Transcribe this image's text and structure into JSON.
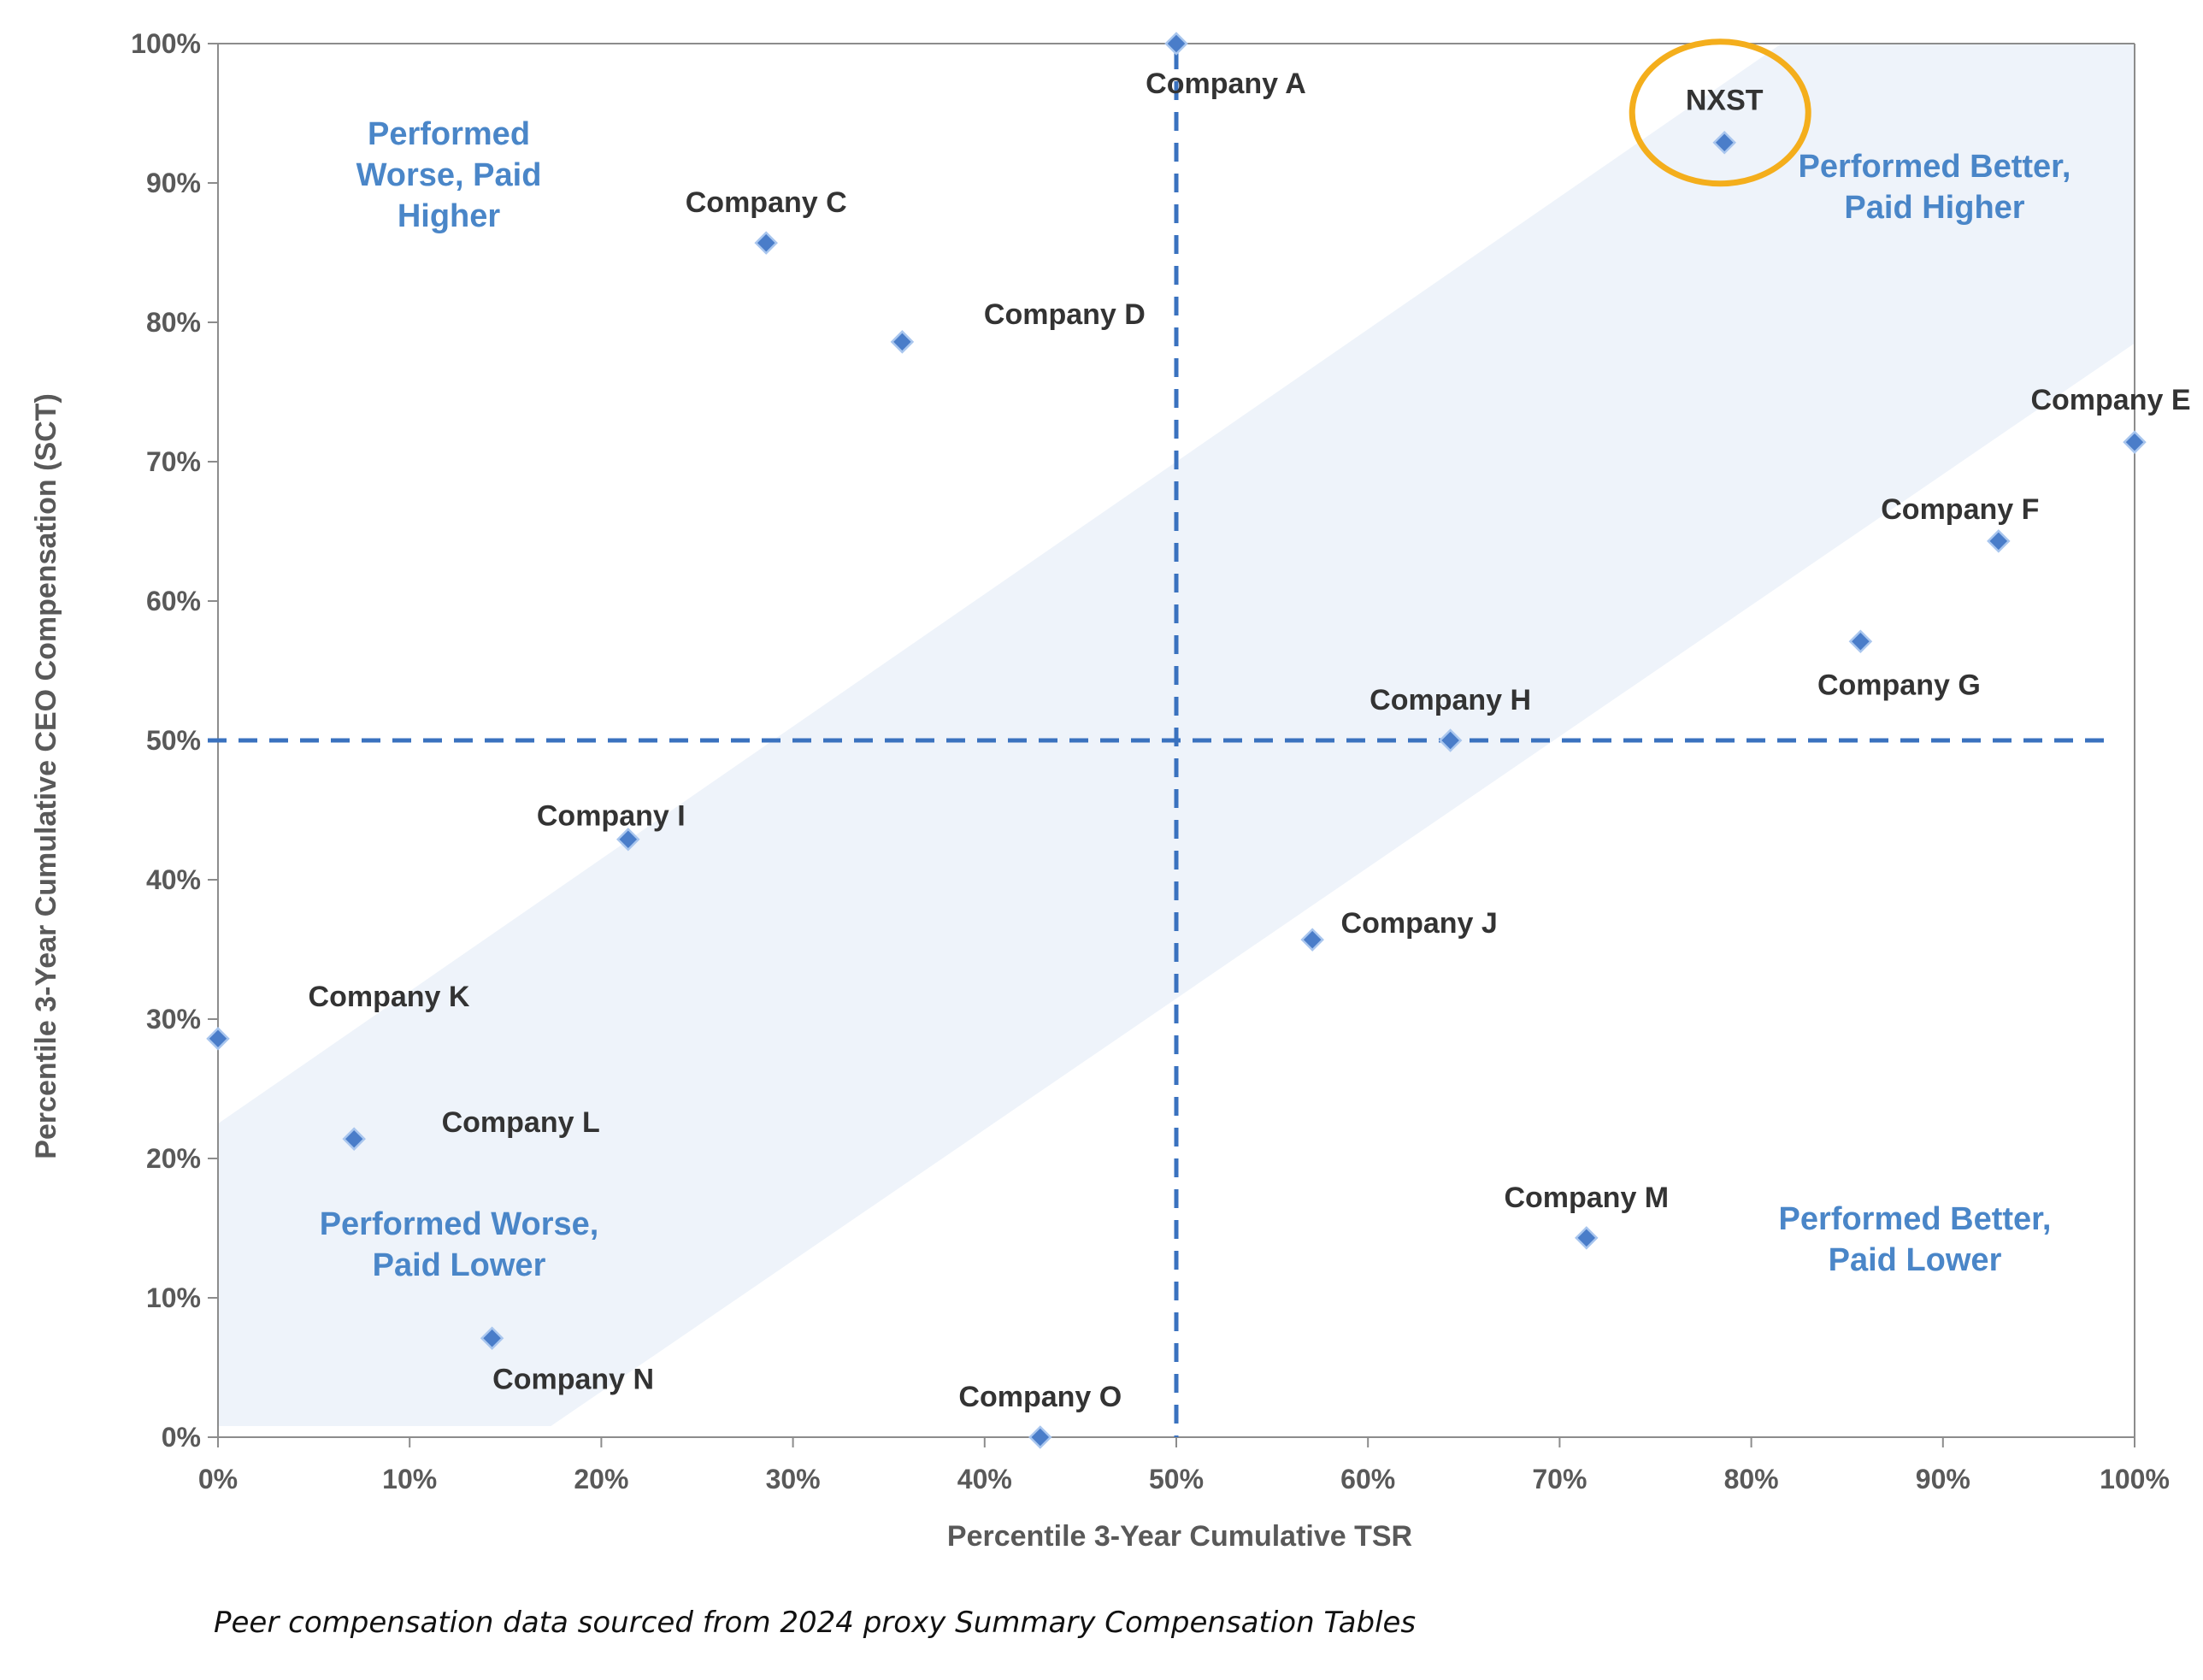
{
  "chart_data": {
    "type": "scatter",
    "xlabel": "Percentile 3-Year Cumulative TSR",
    "ylabel": "Percentile 3-Year Cumulative CEO  Compensation (SCT)",
    "xlim": [
      0,
      100
    ],
    "ylim": [
      0,
      100
    ],
    "x_ticks": [
      "0%",
      "10%",
      "20%",
      "30%",
      "40%",
      "50%",
      "60%",
      "70%",
      "80%",
      "90%",
      "100%"
    ],
    "y_ticks": [
      "0%",
      "10%",
      "20%",
      "30%",
      "40%",
      "50%",
      "60%",
      "70%",
      "80%",
      "90%",
      "100%"
    ],
    "grid": false,
    "reference_lines": {
      "x": 50,
      "y": 50
    },
    "band": {
      "lower_intercept": -16.5,
      "upper_intercept": 22.5,
      "slope": 0.95,
      "color": "#eef3fa"
    },
    "marker_color": "#4a7dc9",
    "highlight_color": "#f4ae1c",
    "highlight": "NXST",
    "points": [
      {
        "label": "Company A",
        "x": 50.0,
        "y": 100.0
      },
      {
        "label": "NXST",
        "x": 78.6,
        "y": 92.9
      },
      {
        "label": "Company C",
        "x": 28.6,
        "y": 85.7
      },
      {
        "label": "Company D",
        "x": 35.7,
        "y": 78.6
      },
      {
        "label": "Company E",
        "x": 100.0,
        "y": 71.4
      },
      {
        "label": "Company F",
        "x": 92.9,
        "y": 64.3
      },
      {
        "label": "Company G",
        "x": 85.7,
        "y": 57.1
      },
      {
        "label": "Company H",
        "x": 64.3,
        "y": 50.0
      },
      {
        "label": "Company I",
        "x": 21.4,
        "y": 42.9
      },
      {
        "label": "Company J",
        "x": 57.1,
        "y": 35.7
      },
      {
        "label": "Company K",
        "x": 0.0,
        "y": 28.6
      },
      {
        "label": "Company L",
        "x": 7.1,
        "y": 21.4
      },
      {
        "label": "Company M",
        "x": 71.4,
        "y": 14.3
      },
      {
        "label": "Company N",
        "x": 14.3,
        "y": 7.1
      },
      {
        "label": "Company O",
        "x": 42.9,
        "y": 0.0
      }
    ],
    "quadrant_labels": [
      {
        "id": "worse-higher",
        "lines": [
          "Performed",
          "Worse, Paid",
          "Higher"
        ]
      },
      {
        "id": "better-higher",
        "lines": [
          "Performed Better,",
          "Paid Higher"
        ]
      },
      {
        "id": "worse-lower",
        "lines": [
          "Performed Worse,",
          "Paid Lower"
        ]
      },
      {
        "id": "better-lower",
        "lines": [
          "Performed Better,",
          "Paid Lower"
        ]
      }
    ]
  },
  "footnote": "Peer compensation data sourced from 2024 proxy Summary Compensation Tables"
}
